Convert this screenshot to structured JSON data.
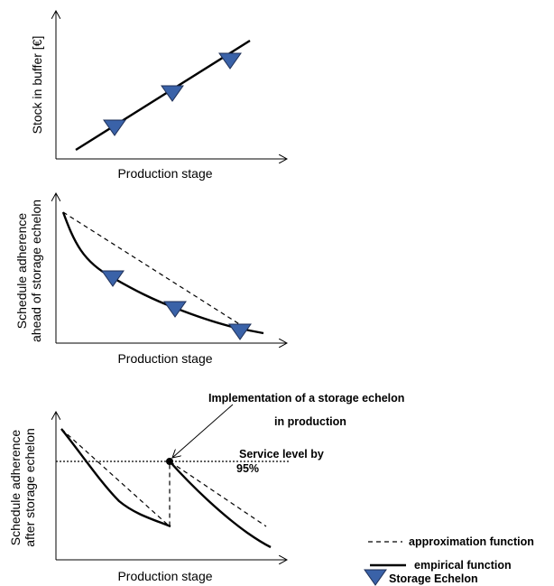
{
  "panels": [
    {
      "xlabel": "Production stage",
      "ylabel": [
        "Stock in buffer [€]"
      ]
    },
    {
      "xlabel": "Production stage",
      "ylabel": [
        "Schedule adherence",
        "ahead of storage echelon"
      ]
    },
    {
      "xlabel": "Production stage",
      "ylabel": [
        "Schedule adherence",
        "after storage echelon"
      ]
    }
  ],
  "annotations": {
    "implementation_line1": "Implementation of a storage echelon",
    "implementation_line2": "in production",
    "service_level_line1": "Service level by",
    "service_level_line2": "95%"
  },
  "legend": {
    "approximation": "approximation function",
    "empirical": "empirical function",
    "storage": "Storage Echelon"
  },
  "colors": {
    "marker_fill": "#3a62a8",
    "marker_stroke": "#1e2f57",
    "line": "#000000"
  }
}
